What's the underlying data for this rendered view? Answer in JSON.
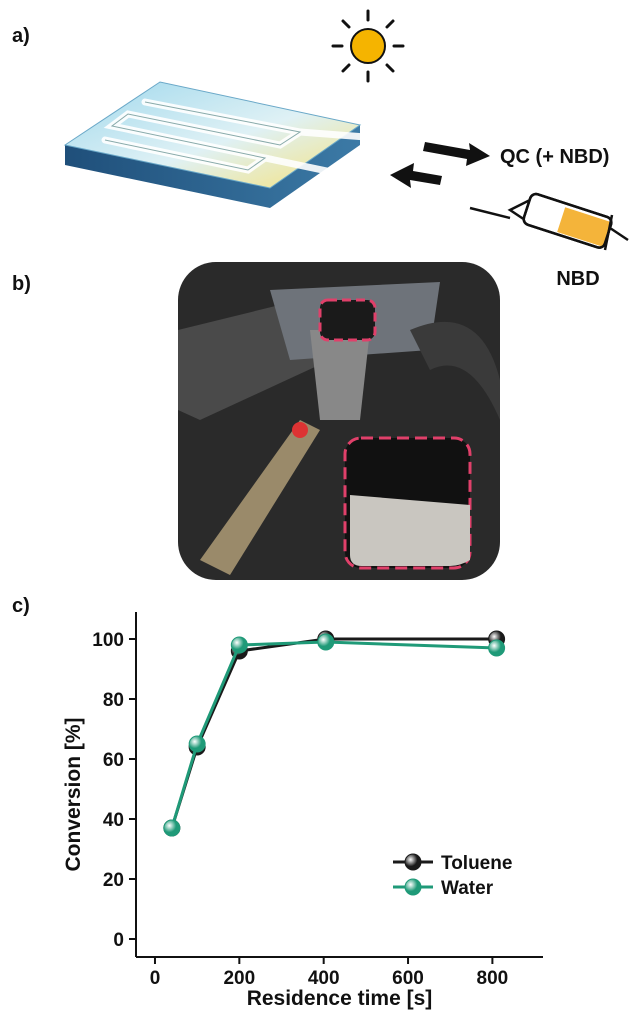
{
  "panel_labels": [
    "a)",
    "b)",
    "c)"
  ],
  "scheme": {
    "output_label": "QC (+ NBD)",
    "input_label": "NBD"
  },
  "chart_data": {
    "type": "line",
    "x_label": "Residence time [s]",
    "y_label": "Conversion [%]",
    "series": [
      {
        "name": "Toluene",
        "color": "#1a1a1a",
        "x": [
          40,
          100,
          200,
          405,
          810
        ],
        "values": [
          37,
          64,
          96,
          100,
          100
        ]
      },
      {
        "name": "Water",
        "color": "#1f9a78",
        "x": [
          40,
          100,
          200,
          405,
          810
        ],
        "values": [
          37,
          65,
          98,
          99,
          97
        ]
      }
    ],
    "xlim": [
      -45,
      920
    ],
    "xticks": [
      0,
      200,
      400,
      600,
      800
    ],
    "ylim": [
      -6,
      109
    ],
    "yticks": [
      0,
      20,
      40,
      60,
      80,
      100
    ],
    "legend": "lower right"
  }
}
